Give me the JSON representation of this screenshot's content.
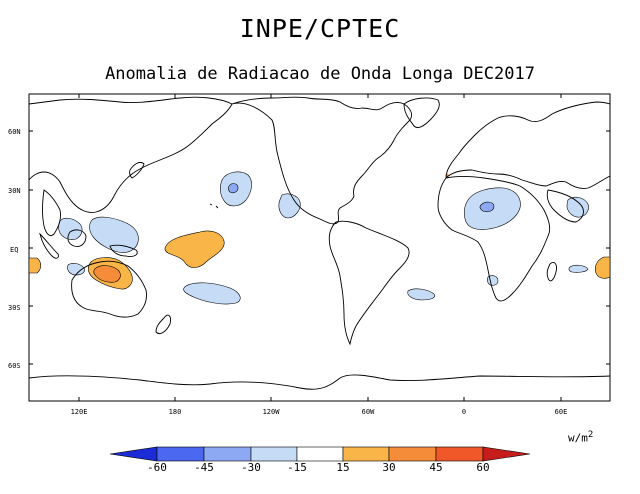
{
  "header": {
    "title": "INPE/CPTEC",
    "subtitle": "Anomalia de Radiacao de Onda Longa DEC2017"
  },
  "axes": {
    "lat_ticks": [
      "60N",
      "30N",
      "EQ",
      "30S",
      "60S"
    ],
    "lon_ticks": [
      "120E",
      "180",
      "120W",
      "60W",
      "0",
      "60E"
    ]
  },
  "colorbar": {
    "units_base": "w/m",
    "units_exp": "2",
    "labels": [
      "-60",
      "-45",
      "-30",
      "-15",
      "15",
      "30",
      "45",
      "60"
    ],
    "colors": [
      "#1b2bd6",
      "#4a68f0",
      "#8ea9f3",
      "#c6dcf6",
      "#ffffff",
      "#f9b548",
      "#f58c3a",
      "#f0582a",
      "#c71c1c"
    ]
  },
  "colors": {
    "negative_light": "#c6dcf6",
    "negative_medium": "#8ea9f3",
    "positive_light": "#f9b548",
    "positive_medium": "#f58c3a"
  }
}
